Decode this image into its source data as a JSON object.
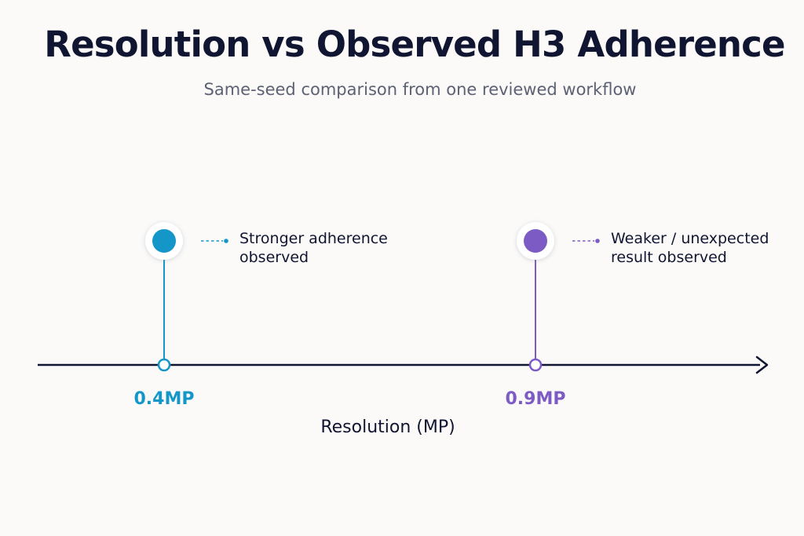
{
  "chart_data": {
    "type": "scatter",
    "title": "Resolution vs Observed H3 Adherence",
    "subtitle": "Same-seed comparison from one reviewed workflow",
    "xlabel": "Resolution (MP)",
    "ylabel": "",
    "grid": false,
    "legend": "none",
    "x_unit": "MP",
    "points": [
      {
        "x": 0.4,
        "tick_label": "0.4MP",
        "annotation_lines": [
          "Stronger adherence",
          "observed"
        ],
        "color": "#1497c8"
      },
      {
        "x": 0.9,
        "tick_label": "0.9MP",
        "annotation_lines": [
          "Weaker / unexpected",
          "result observed"
        ],
        "color": "#7c5cc4"
      }
    ]
  },
  "colors": {
    "axis": "#101631",
    "background": "#fbfaf8"
  }
}
